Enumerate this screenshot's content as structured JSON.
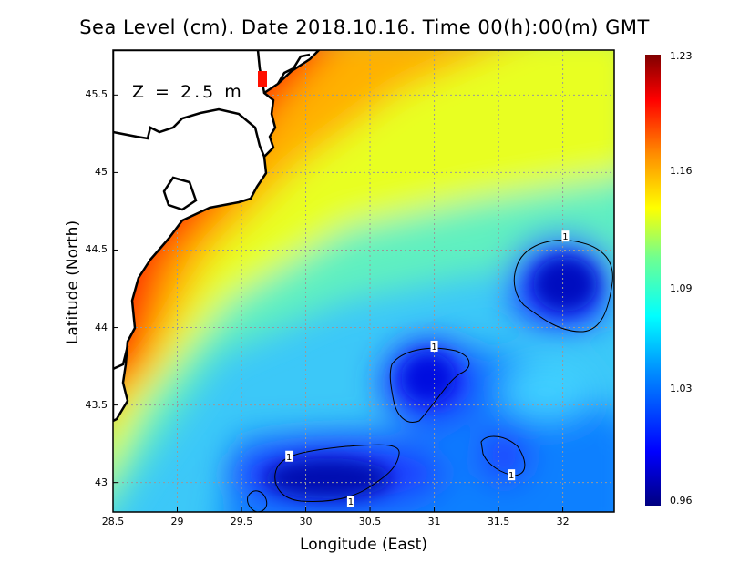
{
  "chart_data": {
    "type": "heatmap",
    "title": "Sea Level (cm). Date 2018.10.16. Time 00(h):00(m) GMT",
    "xlabel": "Longitude (East)",
    "ylabel": "Latitude (North)",
    "annotation": "Z = 2.5 m",
    "xlim": [
      28.5,
      32.4
    ],
    "ylim": [
      42.81,
      45.79
    ],
    "xticks": [
      "28.5",
      "29",
      "29.5",
      "30",
      "30.5",
      "31",
      "31.5",
      "32"
    ],
    "xtick_values": [
      28.5,
      29,
      29.5,
      30,
      30.5,
      31,
      31.5,
      32
    ],
    "yticks": [
      "43",
      "43.5",
      "44",
      "44.5",
      "45",
      "45.5"
    ],
    "ytick_values": [
      43,
      43.5,
      44,
      44.5,
      45,
      45.5
    ],
    "grid": true,
    "colorbar": {
      "ticks": [
        "1.23",
        "1.16",
        "1.09",
        "1.03",
        "0.96"
      ],
      "tick_values": [
        1.23,
        1.16,
        1.09,
        1.03,
        0.96
      ],
      "range": [
        0.96,
        1.23
      ],
      "colors": [
        "#800000",
        "#ff0000",
        "#ff8000",
        "#ffff00",
        "#80ff80",
        "#00ffff",
        "#0080ff",
        "#0000ff",
        "#000080"
      ]
    },
    "contours": [
      {
        "level": "1",
        "label_lon": 32.02,
        "label_lat": 44.59
      },
      {
        "level": "1",
        "label_lon": 31.0,
        "label_lat": 43.88
      },
      {
        "level": "1",
        "label_lon": 29.87,
        "label_lat": 43.17
      },
      {
        "level": "1",
        "label_lon": 30.35,
        "label_lat": 42.88
      },
      {
        "level": "1",
        "label_lon": 31.6,
        "label_lat": 43.05
      }
    ]
  }
}
